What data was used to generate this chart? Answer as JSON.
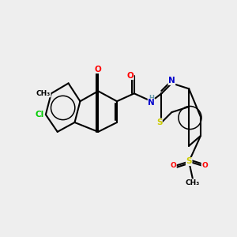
{
  "bg_color": "#eeeeee",
  "bond_color": "#000000",
  "atom_colors": {
    "O": "#ff0000",
    "N": "#0000cc",
    "S": "#cccc00",
    "Cl": "#00cc00",
    "C": "#000000",
    "H": "#6699aa"
  },
  "BL": 22,
  "figsize": [
    3.0,
    3.0
  ],
  "dpi": 100
}
